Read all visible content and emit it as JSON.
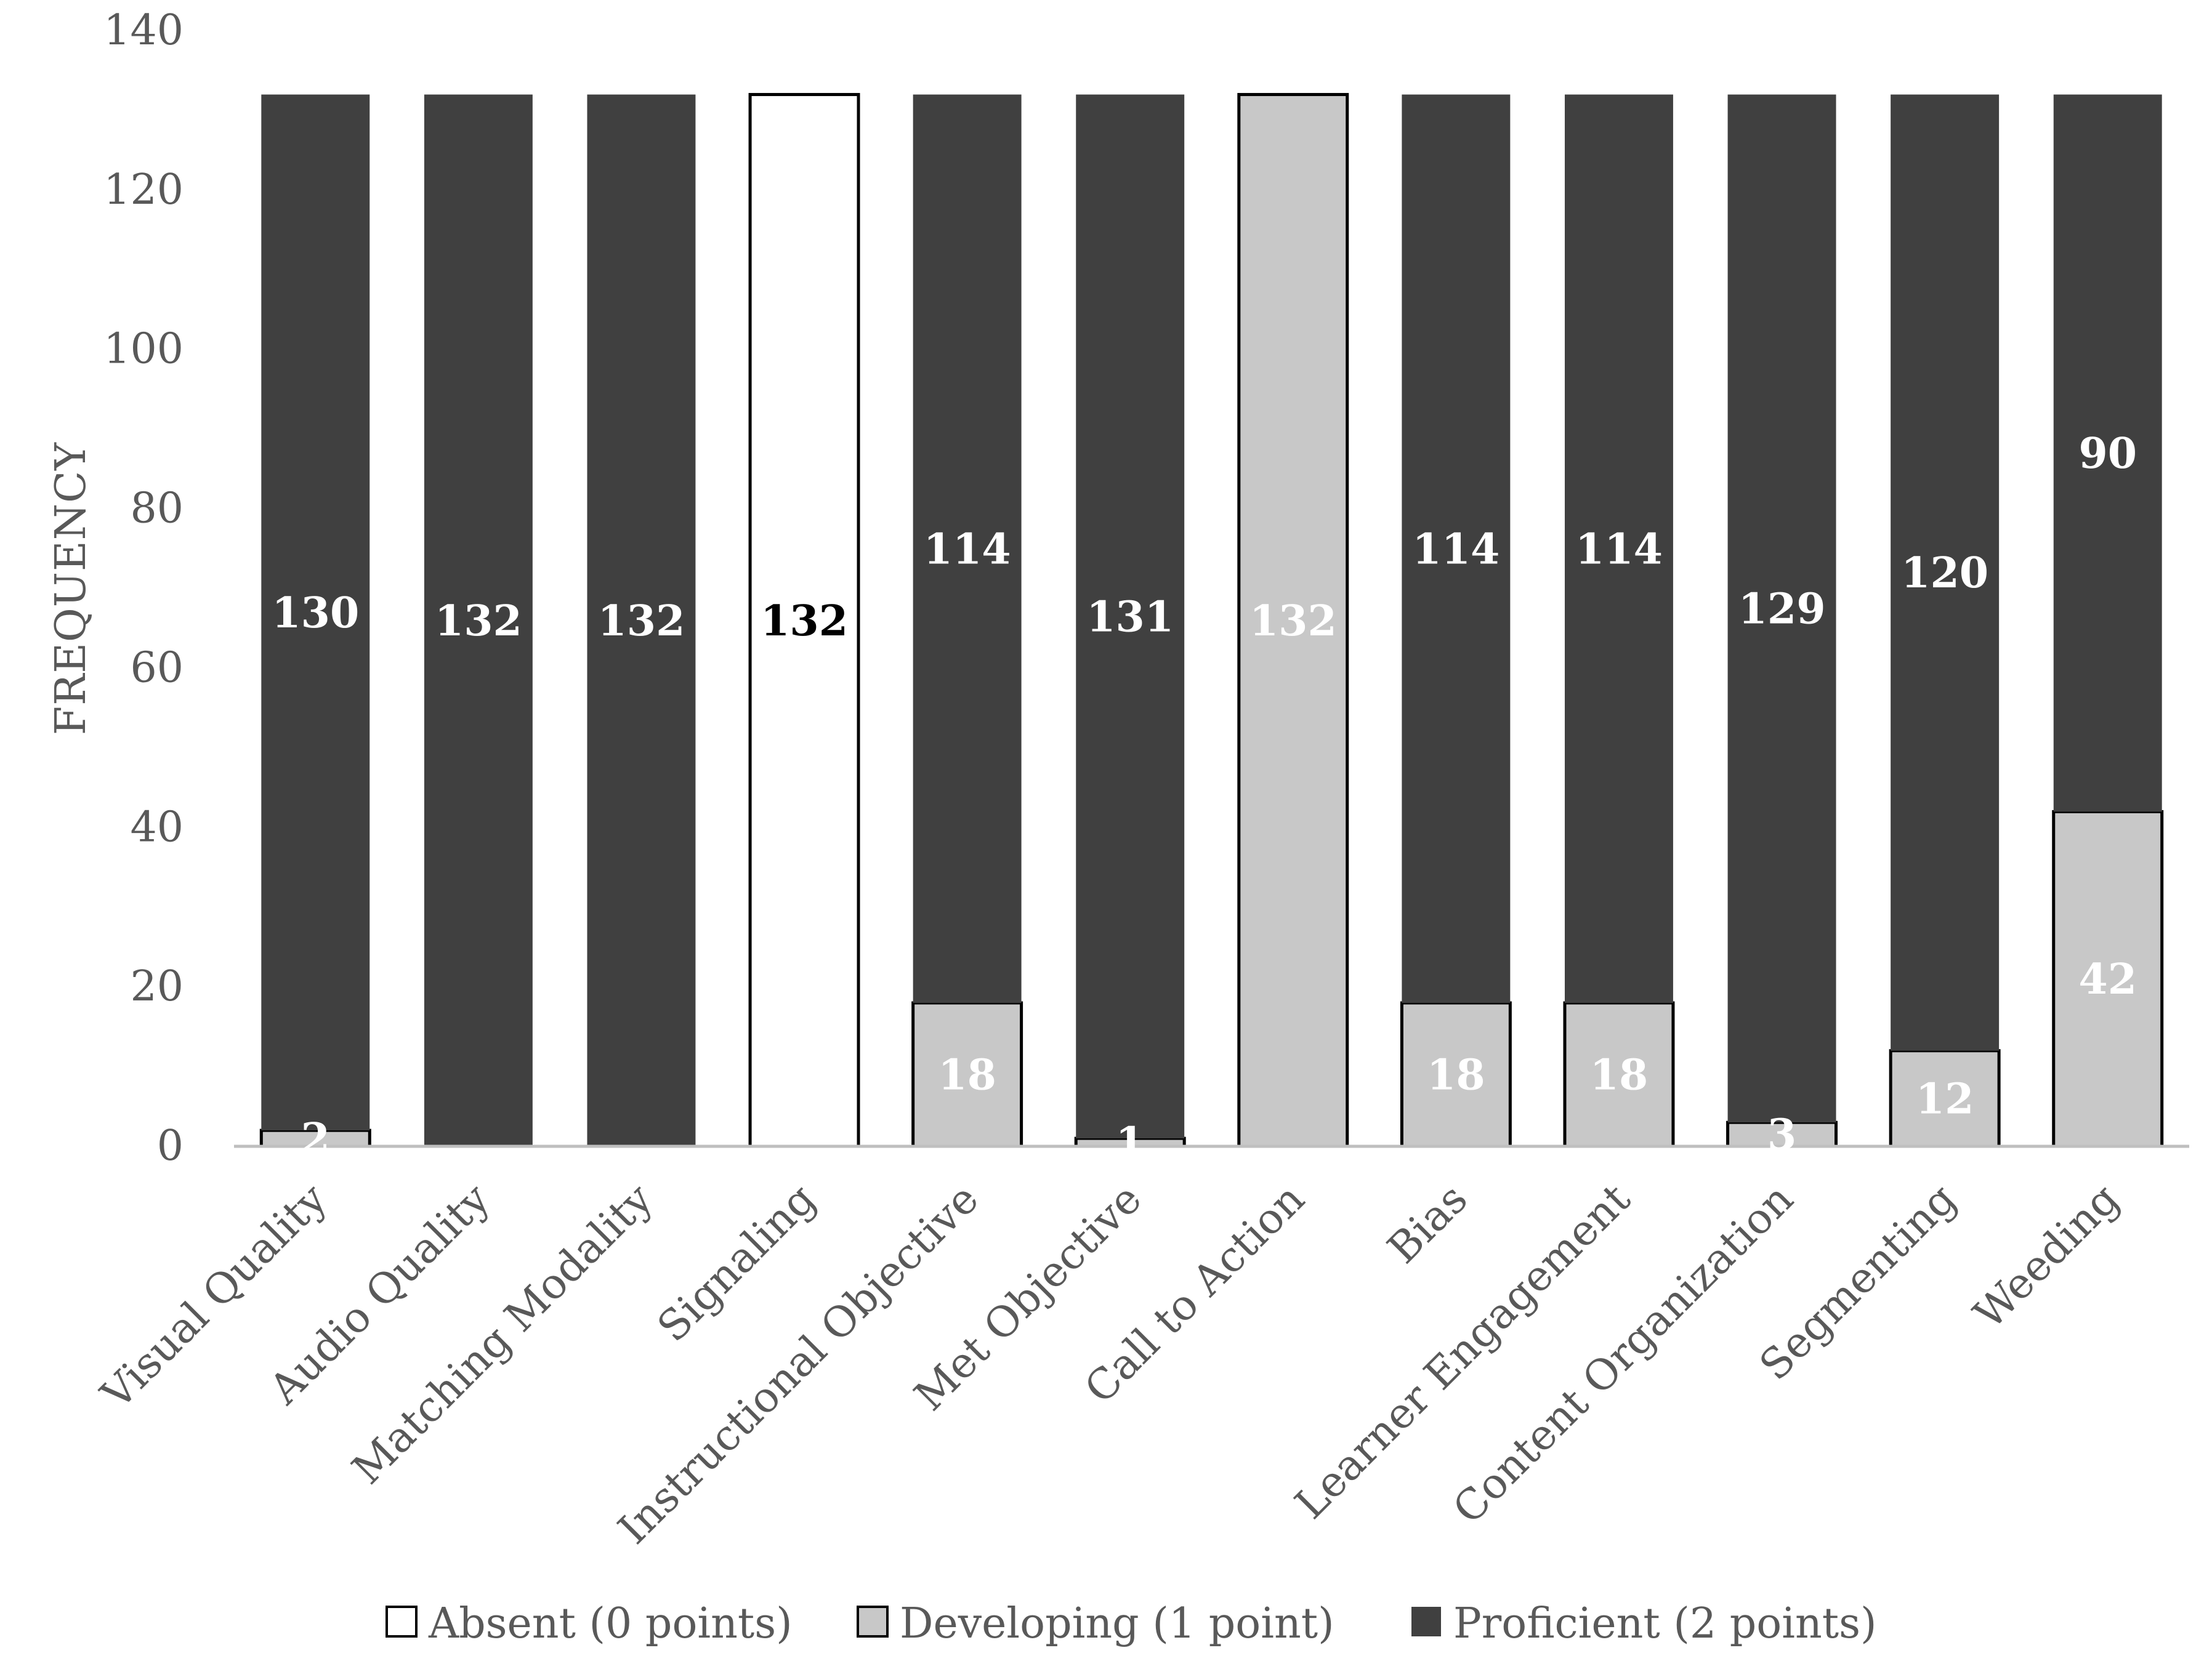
{
  "chart_data": {
    "type": "stacked-bar",
    "title": "",
    "xlabel": "",
    "ylabel": "FREQUENCY",
    "ylim": [
      0,
      140
    ],
    "yticks": [
      0,
      20,
      40,
      60,
      80,
      100,
      120,
      140
    ],
    "grid": false,
    "legend_position": "bottom",
    "categories": [
      "Visual Quality",
      "Audio Quality",
      "Matching Modality",
      "Signaling",
      "Instructional Objective",
      "Met Objective",
      "Call to Action",
      "Bias",
      "Learner Engagement",
      "Content Organization",
      "Segmenting",
      "Weeding"
    ],
    "series": [
      {
        "name": "Absent (0 points)",
        "color": "#ffffff",
        "label_color": "#000000",
        "values": [
          0,
          0,
          0,
          132,
          0,
          0,
          0,
          0,
          0,
          0,
          0,
          0
        ]
      },
      {
        "name": "Developing (1 point)",
        "color": "#c8c8c8",
        "label_color": "#ffffff",
        "values": [
          2,
          0,
          0,
          0,
          18,
          1,
          132,
          18,
          18,
          3,
          12,
          42
        ]
      },
      {
        "name": "Proficient (2 points)",
        "color": "#404040",
        "label_color": "#ffffff",
        "values": [
          130,
          132,
          132,
          0,
          114,
          131,
          0,
          114,
          114,
          129,
          120,
          90
        ]
      }
    ]
  }
}
